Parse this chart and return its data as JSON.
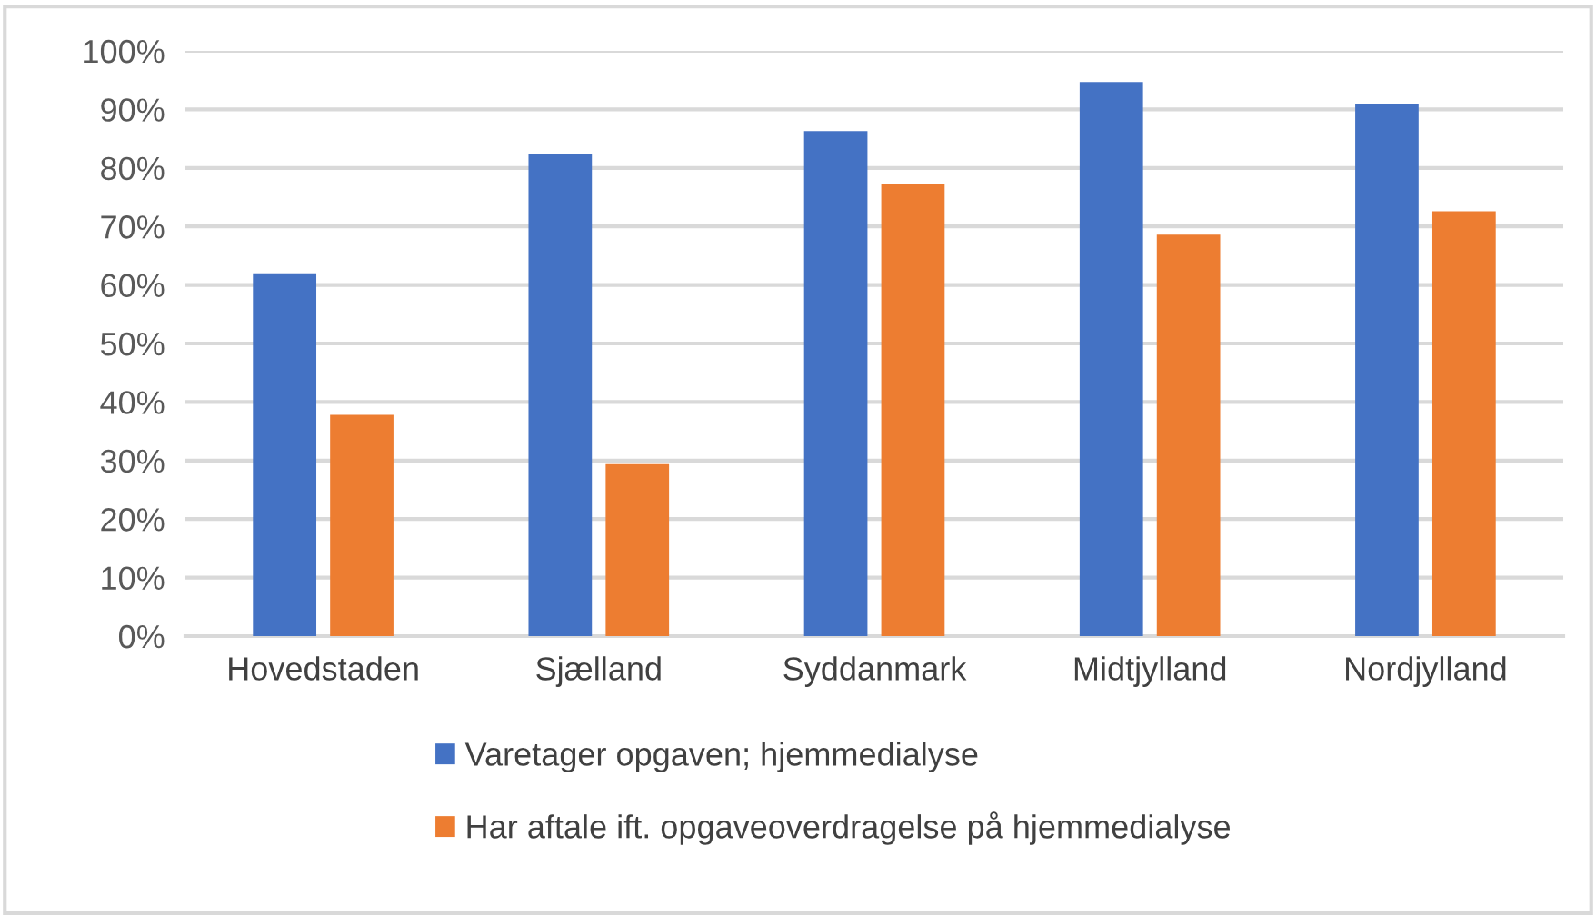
{
  "chart_data": {
    "type": "bar",
    "categories": [
      "Hovedstaden",
      "Sjælland",
      "Syddanmark",
      "Midtjylland",
      "Nordjylland"
    ],
    "series": [
      {
        "name": "Varetager opgaven; hjemmedialyse",
        "color": "#4472c4",
        "values": [
          62,
          82.3,
          86.3,
          94.7,
          91
        ]
      },
      {
        "name": "Har aftale ift. opgaveoverdragelse på hjemmedialyse",
        "color": "#ed7d31",
        "values": [
          37.8,
          29.4,
          77.3,
          68.6,
          72.6
        ]
      }
    ],
    "ylim": [
      0,
      100
    ],
    "yticks": [
      {
        "value": 0,
        "label": "0%"
      },
      {
        "value": 10,
        "label": "10%"
      },
      {
        "value": 20,
        "label": "20%"
      },
      {
        "value": 30,
        "label": "30%"
      },
      {
        "value": 40,
        "label": "40%"
      },
      {
        "value": 50,
        "label": "50%"
      },
      {
        "value": 60,
        "label": "60%"
      },
      {
        "value": 70,
        "label": "70%"
      },
      {
        "value": 80,
        "label": "80%"
      },
      {
        "value": 90,
        "label": "90%"
      },
      {
        "value": 100,
        "label": "100%"
      }
    ],
    "grid": "y",
    "legend": "bottom"
  }
}
